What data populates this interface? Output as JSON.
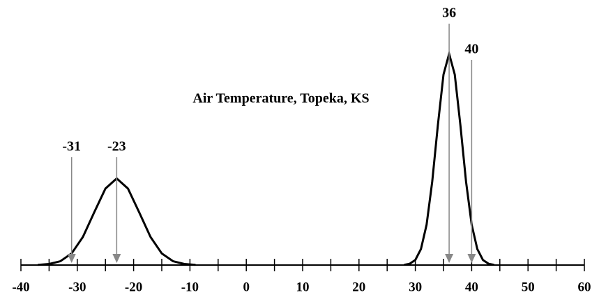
{
  "chart_data": {
    "type": "line",
    "title": "Air Temperature, Topeka, KS",
    "xlim": [
      -40,
      60
    ],
    "xticks": [
      -40,
      -30,
      -20,
      -10,
      0,
      10,
      20,
      30,
      40,
      50,
      60
    ],
    "xminorticks": [
      -35,
      -25,
      -15,
      -5,
      5,
      15,
      25,
      35,
      45,
      55
    ],
    "ylim": [
      0,
      1.1
    ],
    "series": [
      {
        "color": "#000000",
        "x": [
          -37,
          -35,
          -33,
          -31,
          -29,
          -27,
          -25,
          -23,
          -21,
          -19,
          -17,
          -15,
          -13,
          -11,
          -9
        ],
        "values": [
          0.001,
          0.005,
          0.018,
          0.055,
          0.133,
          0.249,
          0.362,
          0.41,
          0.362,
          0.249,
          0.133,
          0.055,
          0.018,
          0.005,
          0.001
        ]
      },
      {
        "color": "#000000",
        "x": [
          28,
          29,
          30,
          31,
          32,
          33,
          34,
          35,
          36,
          37,
          38,
          39,
          40,
          41,
          42,
          43,
          44
        ],
        "values": [
          0.001,
          0.006,
          0.024,
          0.076,
          0.191,
          0.395,
          0.662,
          0.902,
          1,
          0.902,
          0.662,
          0.395,
          0.191,
          0.076,
          0.024,
          0.006,
          0.001
        ]
      }
    ],
    "annotations": [
      {
        "x": -31
      },
      {
        "x": -23
      },
      {
        "x": 36
      },
      {
        "x": 40
      }
    ],
    "arrow_color": "#888888"
  }
}
